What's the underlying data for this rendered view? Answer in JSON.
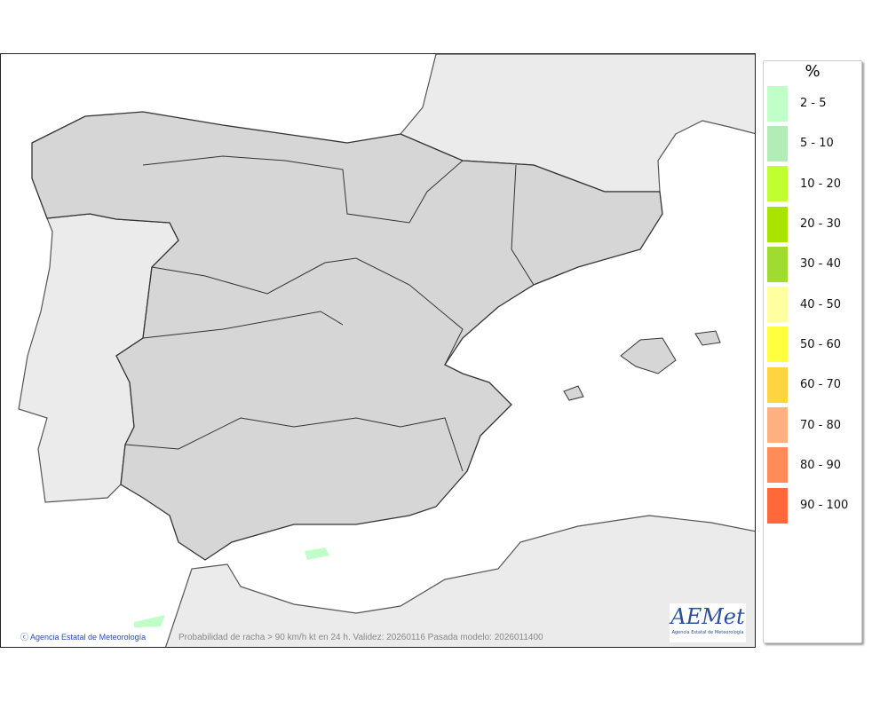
{
  "map": {
    "credit": "Agencia Estatal de Meteorología",
    "caption": "Probabilidad de racha > 90 km/h kt en 24 h. Validez: 20260116 Pasada modelo: 2026011400",
    "logo_text": "AEMet",
    "logo_subtitle": "Agencia Estatal de Meteorología",
    "colors": {
      "spain_land": "#d6d6d6",
      "neighbor_land": "#ebebeb",
      "sea": "#ffffff"
    }
  },
  "legend": {
    "title": "%",
    "items": [
      {
        "label": "2 - 5",
        "color": "#c0ffc8"
      },
      {
        "label": "5 - 10",
        "color": "#b4ecb8"
      },
      {
        "label": "10 - 20",
        "color": "#c0ff30"
      },
      {
        "label": "20 - 30",
        "color": "#a8e400"
      },
      {
        "label": "30 - 40",
        "color": "#a0dc30"
      },
      {
        "label": "40 - 50",
        "color": "#ffffa0"
      },
      {
        "label": "50 - 60",
        "color": "#ffff40"
      },
      {
        "label": "60 - 70",
        "color": "#ffd440"
      },
      {
        "label": "70 - 80",
        "color": "#ffb080"
      },
      {
        "label": "80 - 90",
        "color": "#ff8c58"
      },
      {
        "label": "90 - 100",
        "color": "#ff6838"
      }
    ]
  }
}
